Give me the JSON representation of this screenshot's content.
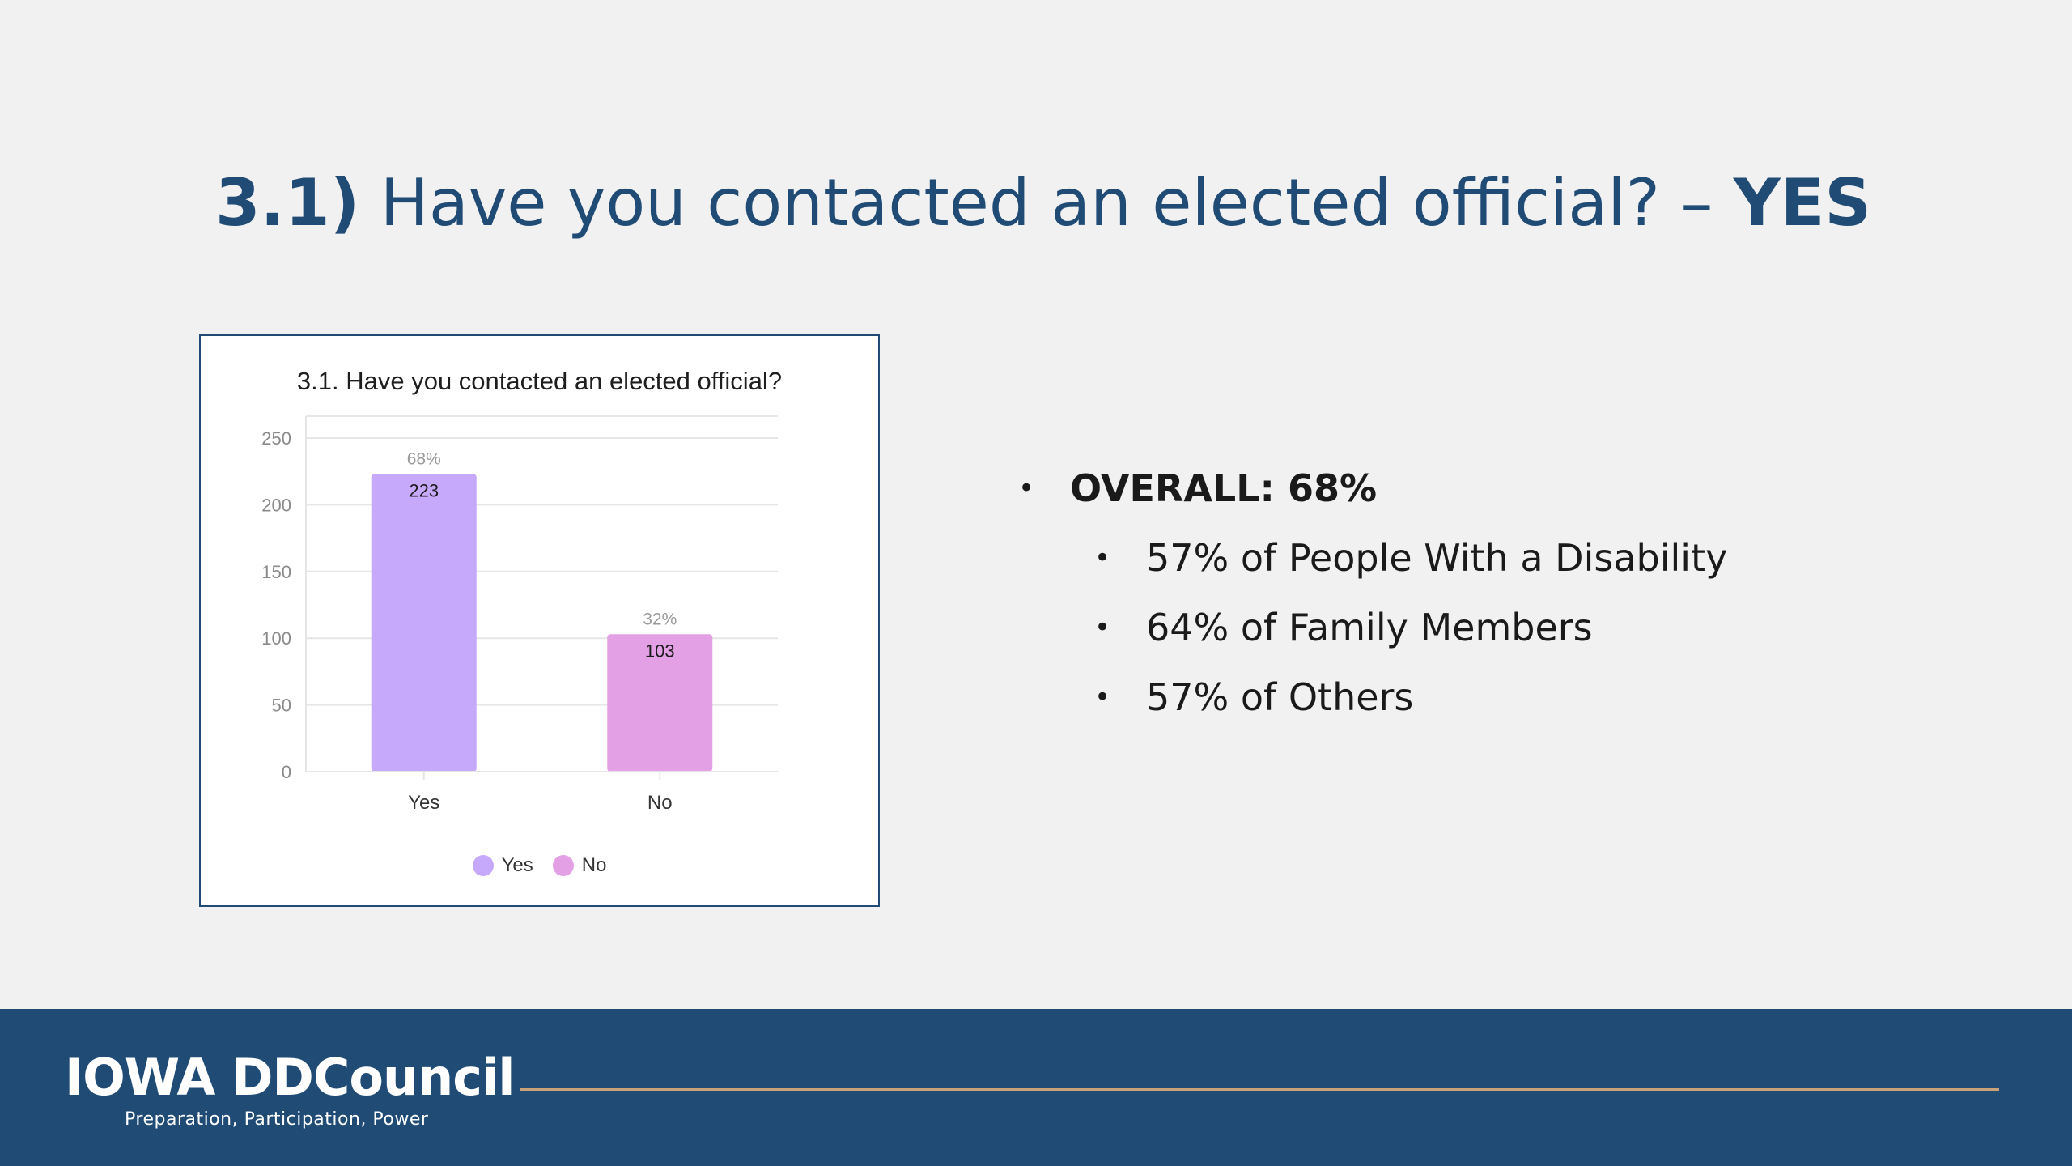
{
  "slide": {
    "title_number": "3.1)",
    "title_question": " Have you contacted an elected official? – ",
    "title_answer": "YES"
  },
  "bullets": {
    "overall": "OVERALL: 68%",
    "items": [
      "57% of People With a Disability",
      "64% of Family Members",
      "57% of Others"
    ]
  },
  "footer": {
    "logo_text": "IOWA DDCouncil",
    "tagline": "Preparation, Participation, Power"
  },
  "chart_data": {
    "type": "bar",
    "title": "3.1. Have you contacted an elected official?",
    "categories": [
      "Yes",
      "No"
    ],
    "values": [
      223,
      103
    ],
    "percent_labels": [
      "68%",
      "32%"
    ],
    "colors": [
      "#c7a9fb",
      "#e3a0e5"
    ],
    "ylim": [
      0,
      250
    ],
    "yticks": [
      0,
      50,
      100,
      150,
      200,
      250
    ],
    "grid": true,
    "legend": {
      "position": "bottom",
      "entries": [
        "Yes",
        "No"
      ]
    }
  },
  "colors": {
    "brand_blue": "#1f4b75",
    "footer_rule": "#c9a27a",
    "background": "#f1f1f1"
  }
}
